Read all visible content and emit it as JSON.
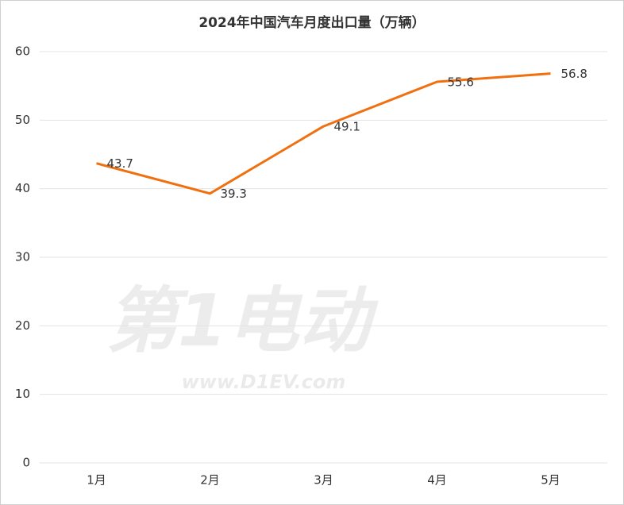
{
  "chart_data": {
    "type": "line",
    "title": "2024年中国汽车月度出口量（万辆）",
    "categories": [
      "1月",
      "2月",
      "3月",
      "4月",
      "5月"
    ],
    "series": [
      {
        "name": "出口量",
        "color": "#f0700f",
        "values": [
          43.7,
          39.3,
          49.1,
          55.6,
          56.8
        ]
      }
    ],
    "ylim": [
      0,
      60
    ],
    "yticks": [
      0,
      10,
      20,
      30,
      40,
      50,
      60
    ],
    "grid": true,
    "watermark": [
      "第1电动",
      "www.D1EV.com"
    ]
  }
}
